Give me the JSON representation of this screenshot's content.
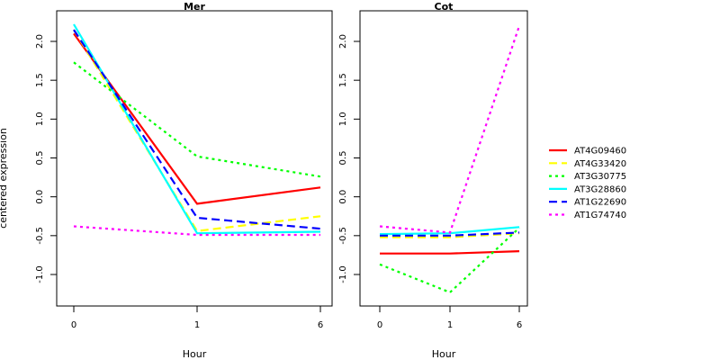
{
  "figure": {
    "ylabel": "centered expression"
  },
  "chart_data": [
    {
      "type": "line",
      "title": "Mer",
      "xlabel": "Hour",
      "ylabel": "centered expression",
      "x_ticks": [
        "0",
        "1",
        "6"
      ],
      "ylim": [
        -1.3,
        2.25
      ],
      "y_ticks": [
        -1.0,
        -0.5,
        0.0,
        0.5,
        1.0,
        1.5,
        2.0
      ],
      "y_tick_labels": [
        "-1.0",
        "-0.5",
        "0.0",
        "0.5",
        "1.0",
        "1.5",
        "2.0"
      ],
      "grid": false,
      "series": [
        {
          "name": "AT4G09460",
          "color": "#ff0000",
          "dash": "solid",
          "values": [
            2.1,
            -0.09,
            0.12
          ]
        },
        {
          "name": "AT4G33420",
          "color": "#ffff00",
          "dash": "dashed",
          "values": [
            2.15,
            -0.44,
            -0.25
          ]
        },
        {
          "name": "AT3G30775",
          "color": "#00ff00",
          "dash": "dotted",
          "values": [
            1.73,
            0.52,
            0.26
          ]
        },
        {
          "name": "AT3G28860",
          "color": "#00ffff",
          "dash": "solid",
          "values": [
            2.22,
            -0.47,
            -0.45
          ]
        },
        {
          "name": "AT1G22690",
          "color": "#0000ff",
          "dash": "dashed",
          "values": [
            2.15,
            -0.27,
            -0.41
          ]
        },
        {
          "name": "AT1G74740",
          "color": "#ff00ff",
          "dash": "dotted",
          "values": [
            -0.38,
            -0.49,
            -0.49
          ]
        }
      ]
    },
    {
      "type": "line",
      "title": "Cot",
      "xlabel": "Hour",
      "x_ticks": [
        "0",
        "1",
        "6"
      ],
      "ylim": [
        -1.3,
        2.25
      ],
      "y_ticks": [
        -1.0,
        -0.5,
        0.0,
        0.5,
        1.0,
        1.5,
        2.0
      ],
      "y_tick_labels": [
        "-1.0",
        "-0.5",
        "0.0",
        "0.5",
        "1.0",
        "1.5",
        "2.0"
      ],
      "grid": false,
      "series": [
        {
          "name": "AT4G09460",
          "color": "#ff0000",
          "dash": "solid",
          "values": [
            -0.73,
            -0.73,
            -0.7
          ]
        },
        {
          "name": "AT4G33420",
          "color": "#ffff00",
          "dash": "dashed",
          "values": [
            -0.52,
            -0.52,
            -0.47
          ]
        },
        {
          "name": "AT3G30775",
          "color": "#00ff00",
          "dash": "dotted",
          "values": [
            -0.87,
            -1.23,
            -0.4
          ]
        },
        {
          "name": "AT3G28860",
          "color": "#00ffff",
          "dash": "solid",
          "values": [
            -0.48,
            -0.47,
            -0.39
          ]
        },
        {
          "name": "AT1G22690",
          "color": "#0000ff",
          "dash": "dashed",
          "values": [
            -0.5,
            -0.5,
            -0.46
          ]
        },
        {
          "name": "AT1G74740",
          "color": "#ff00ff",
          "dash": "dotted",
          "values": [
            -0.38,
            -0.46,
            2.2
          ]
        }
      ]
    }
  ],
  "legend": {
    "position": "right",
    "entries": [
      {
        "label": "AT4G09460",
        "color": "#ff0000",
        "dash": "solid"
      },
      {
        "label": "AT4G33420",
        "color": "#ffff00",
        "dash": "dashed"
      },
      {
        "label": "AT3G30775",
        "color": "#00ff00",
        "dash": "dotted"
      },
      {
        "label": "AT3G28860",
        "color": "#00ffff",
        "dash": "solid"
      },
      {
        "label": "AT1G22690",
        "color": "#0000ff",
        "dash": "dashed"
      },
      {
        "label": "AT1G74740",
        "color": "#ff00ff",
        "dash": "dotted"
      }
    ]
  }
}
